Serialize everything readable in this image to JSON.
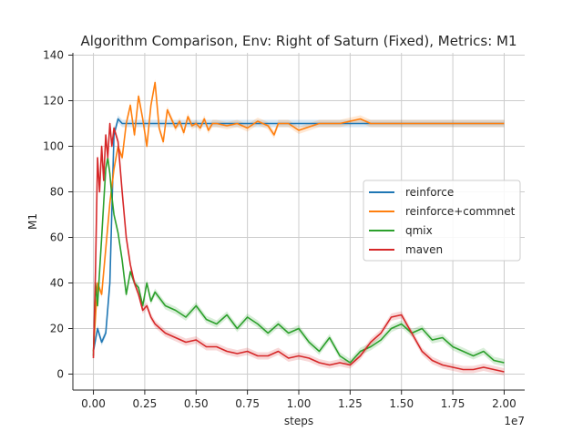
{
  "chart_data": {
    "type": "line",
    "title": "Algorithm Comparison, Env: Right of Saturn (Fixed), Metrics: M1",
    "xlabel": "steps",
    "ylabel": "M1",
    "x_offset_label": "1e7",
    "xlim": [
      -1000000,
      21000000
    ],
    "ylim": [
      -7,
      141
    ],
    "x_ticks": [
      0,
      2500000,
      5000000,
      7500000,
      10000000,
      12500000,
      15000000,
      17500000,
      20000000
    ],
    "x_tick_labels": [
      "0.00",
      "0.25",
      "0.50",
      "0.75",
      "1.00",
      "1.25",
      "1.50",
      "1.75",
      "2.00"
    ],
    "y_ticks": [
      0,
      20,
      40,
      60,
      80,
      100,
      120,
      140
    ],
    "y_tick_labels": [
      "0",
      "20",
      "40",
      "60",
      "80",
      "100",
      "120",
      "140"
    ],
    "grid": true,
    "legend_position": "center-right",
    "series": [
      {
        "name": "reinforce",
        "color": "#1f77b4",
        "x": [
          0,
          200000,
          400000,
          600000,
          800000,
          1000000,
          1200000,
          1400000,
          1600000,
          2000000,
          3000000,
          4000000,
          5000000,
          7500000,
          10000000,
          12500000,
          15000000,
          17500000,
          20000000
        ],
        "y": [
          10,
          20,
          14,
          18,
          40,
          105,
          112,
          110,
          110,
          110,
          110,
          110,
          110,
          110,
          110,
          110,
          110,
          110,
          110
        ]
      },
      {
        "name": "reinforce+commnet",
        "color": "#ff7f0e",
        "x": [
          0,
          200000,
          400000,
          600000,
          800000,
          1000000,
          1200000,
          1400000,
          1600000,
          1800000,
          2000000,
          2200000,
          2400000,
          2600000,
          2800000,
          3000000,
          3200000,
          3400000,
          3600000,
          3800000,
          4000000,
          4200000,
          4400000,
          4600000,
          4800000,
          5000000,
          5200000,
          5400000,
          5600000,
          5800000,
          6000000,
          6500000,
          7000000,
          7500000,
          8000000,
          8500000,
          8800000,
          9000000,
          9500000,
          10000000,
          11000000,
          12000000,
          13000000,
          13500000,
          14000000,
          15000000,
          16000000,
          17000000,
          18000000,
          19000000,
          20000000
        ],
        "y": [
          10,
          40,
          35,
          55,
          75,
          90,
          100,
          95,
          110,
          118,
          105,
          122,
          112,
          100,
          118,
          128,
          108,
          102,
          116,
          112,
          108,
          111,
          106,
          113,
          109,
          110,
          108,
          112,
          107,
          110,
          110,
          109,
          110,
          108,
          111,
          109,
          105,
          110,
          110,
          107,
          110,
          110,
          112,
          110,
          110,
          110,
          110,
          110,
          110,
          110,
          110
        ]
      },
      {
        "name": "qmix",
        "color": "#2ca02c",
        "x": [
          0,
          100000,
          200000,
          300000,
          400000,
          500000,
          600000,
          700000,
          800000,
          900000,
          1000000,
          1200000,
          1400000,
          1600000,
          1800000,
          2000000,
          2200000,
          2400000,
          2600000,
          2800000,
          3000000,
          3500000,
          4000000,
          4500000,
          5000000,
          5500000,
          6000000,
          6500000,
          7000000,
          7500000,
          8000000,
          8500000,
          9000000,
          9500000,
          10000000,
          10500000,
          11000000,
          11500000,
          12000000,
          12500000,
          13000000,
          13500000,
          14000000,
          14500000,
          15000000,
          15500000,
          16000000,
          16500000,
          17000000,
          17500000,
          18000000,
          18500000,
          19000000,
          19500000,
          20000000
        ],
        "y": [
          8,
          40,
          30,
          45,
          60,
          75,
          90,
          95,
          88,
          78,
          70,
          62,
          50,
          35,
          45,
          40,
          38,
          30,
          40,
          32,
          36,
          30,
          28,
          25,
          30,
          24,
          22,
          26,
          20,
          25,
          22,
          18,
          22,
          18,
          20,
          14,
          10,
          16,
          8,
          5,
          10,
          12,
          15,
          20,
          22,
          18,
          20,
          15,
          16,
          12,
          10,
          8,
          10,
          6,
          5
        ]
      },
      {
        "name": "maven",
        "color": "#d62728",
        "x": [
          0,
          100000,
          200000,
          300000,
          400000,
          500000,
          600000,
          700000,
          800000,
          900000,
          1000000,
          1200000,
          1400000,
          1600000,
          1800000,
          2000000,
          2200000,
          2400000,
          2600000,
          2800000,
          3000000,
          3500000,
          4000000,
          4500000,
          5000000,
          5500000,
          6000000,
          6500000,
          7000000,
          7500000,
          8000000,
          8500000,
          9000000,
          9500000,
          10000000,
          10500000,
          11000000,
          11500000,
          12000000,
          12500000,
          13000000,
          13500000,
          14000000,
          14500000,
          15000000,
          15500000,
          16000000,
          16500000,
          17000000,
          17500000,
          18000000,
          18500000,
          19000000,
          19500000,
          20000000
        ],
        "y": [
          7,
          45,
          95,
          80,
          100,
          85,
          105,
          95,
          110,
          100,
          108,
          102,
          80,
          60,
          48,
          40,
          35,
          28,
          30,
          25,
          22,
          18,
          16,
          14,
          15,
          12,
          12,
          10,
          9,
          10,
          8,
          8,
          10,
          7,
          8,
          7,
          5,
          4,
          5,
          4,
          8,
          14,
          18,
          25,
          26,
          18,
          10,
          6,
          4,
          3,
          2,
          2,
          3,
          2,
          1
        ]
      }
    ]
  }
}
